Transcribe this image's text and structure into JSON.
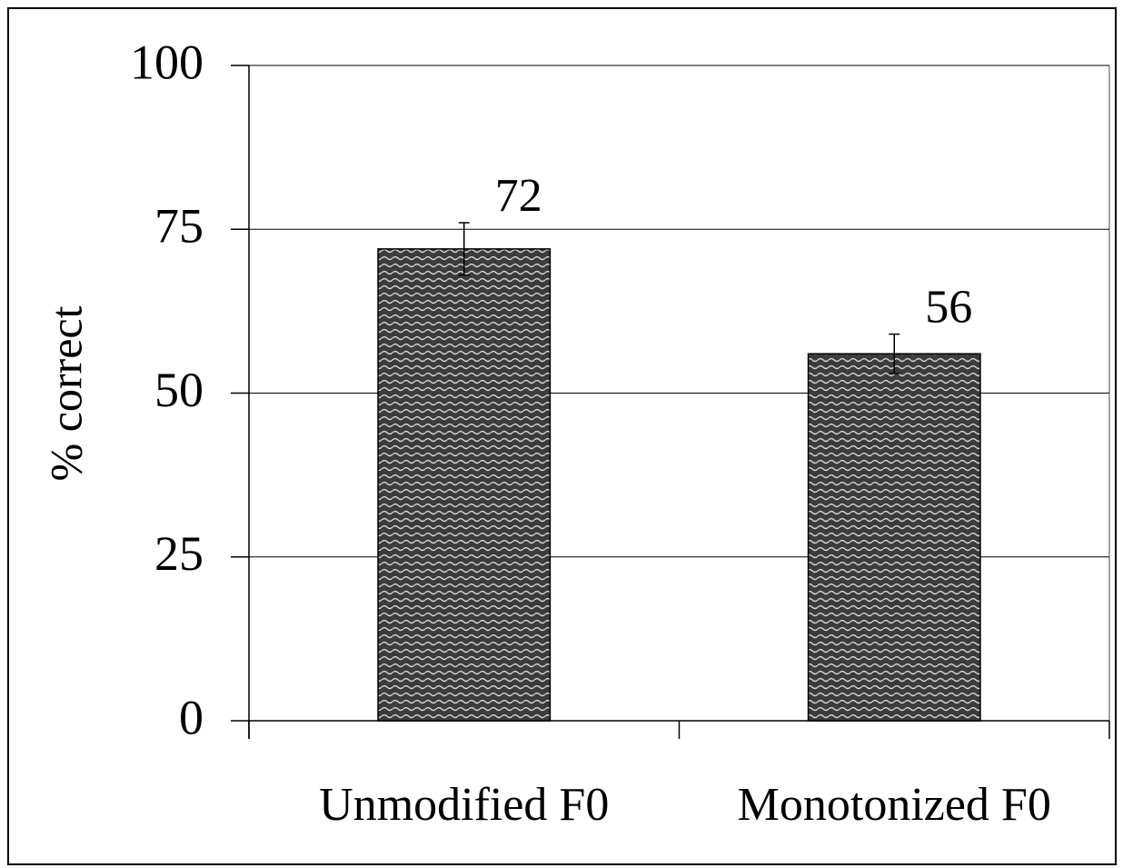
{
  "chart_data": {
    "type": "bar",
    "y_label": "% correct",
    "categories": [
      "Unmodified F0",
      "Monotonized F0"
    ],
    "values": [
      72,
      56
    ],
    "errors": [
      4,
      3
    ],
    "color": "#3c3c3c",
    "ylim": [
      0,
      100
    ],
    "yticks": [
      0,
      25,
      50,
      75,
      100
    ],
    "grid": true
  }
}
